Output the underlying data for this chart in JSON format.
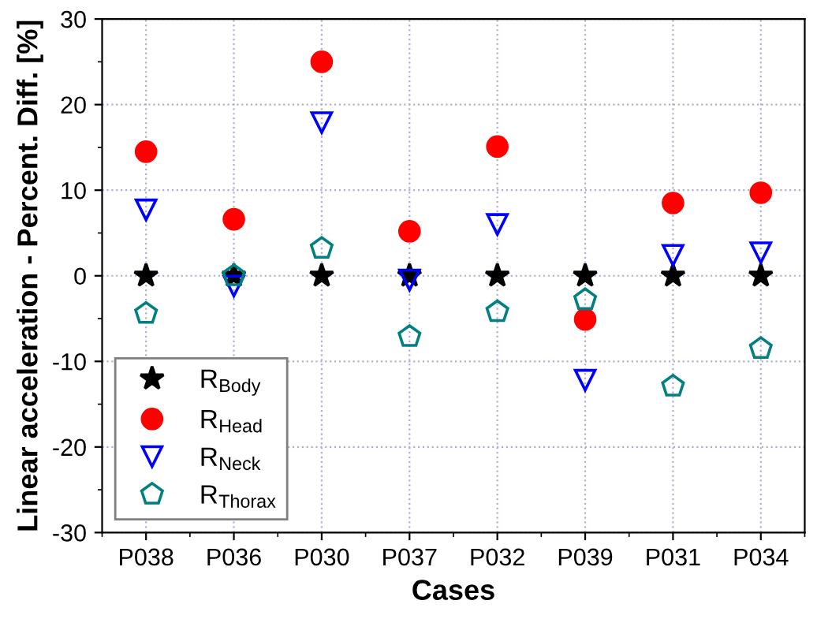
{
  "chart_data": {
    "type": "scatter",
    "xlabel": "Cases",
    "ylabel": "Linear acceleration - Percent. Diff. [%]",
    "categories": [
      "P038",
      "P036",
      "P030",
      "P037",
      "P032",
      "P039",
      "P031",
      "P034"
    ],
    "series": [
      {
        "name": "R$_{Body}$",
        "color": "#000000",
        "marker": "star",
        "values": [
          0,
          0,
          0,
          0,
          0,
          0,
          0,
          0
        ]
      },
      {
        "name": "R$_{Head}$",
        "color": "#ff0000",
        "marker": "circle",
        "values": [
          14.5,
          6.6,
          25,
          5.2,
          15.1,
          -5.1,
          8.5,
          9.7
        ]
      },
      {
        "name": "R$_{Neck}$",
        "color": "#0000ff",
        "marker": "triangle",
        "values": [
          7.7,
          -1.2,
          17.9,
          -0.5,
          6.0,
          -12.2,
          2.4,
          2.7
        ]
      },
      {
        "name": "R$_{Thorax}$",
        "color": "#008080",
        "values": [
          -4.4,
          0.0,
          3.2,
          -7.1,
          -4.2,
          -2.8,
          -12.9,
          -8.5
        ]
      }
    ],
    "ylim": [
      -30,
      30
    ],
    "yticks": [
      -30,
      -20,
      -10,
      0,
      10,
      20,
      30
    ],
    "grid": true,
    "legend": "bottom left"
  }
}
